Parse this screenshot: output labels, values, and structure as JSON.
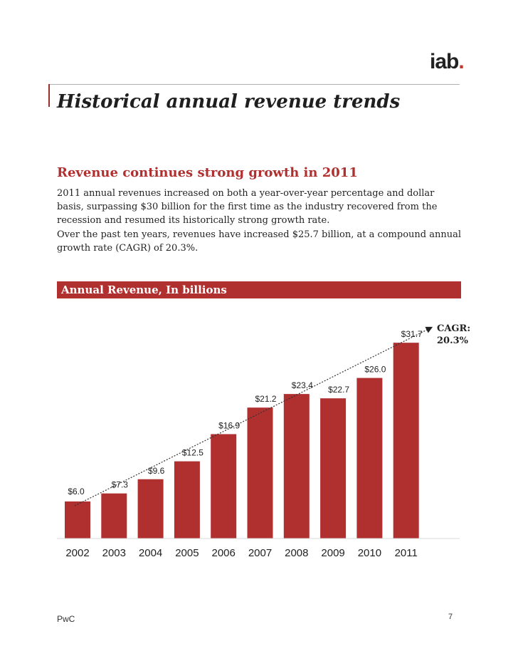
{
  "logo": {
    "text": "iab",
    "dot": "."
  },
  "page_title": "Historical annual revenue trends",
  "section": {
    "heading": "Revenue continues strong growth in 2011",
    "paragraph1": "2011 annual revenues increased on both a year-over-year percentage and dollar basis, surpassing $30 billion for the first time as the industry recovered from the recession and resumed its historically strong growth rate.",
    "paragraph2": "Over the past ten years, revenues have increased $25.7 billion, at a compound annual growth rate (CAGR) of 20.3%."
  },
  "chart_header": "Annual Revenue, In billions",
  "chart_data": {
    "type": "bar",
    "title": "Annual Revenue, In billions",
    "categories": [
      "2002",
      "2003",
      "2004",
      "2005",
      "2006",
      "2007",
      "2008",
      "2009",
      "2010",
      "2011"
    ],
    "values": [
      6.0,
      7.3,
      9.6,
      12.5,
      16.9,
      21.2,
      23.4,
      22.7,
      26.0,
      31.7
    ],
    "data_labels": [
      "$6.0",
      "$7.3",
      "$9.6",
      "$12.5",
      "$16.9",
      "$21.2",
      "$23.4",
      "$22.7",
      "$26.0",
      "$31.7"
    ],
    "bar_color": "#b03030",
    "ylim": [
      0,
      33
    ],
    "trend_annotation": {
      "line1": "CAGR:",
      "line2": "20.3%"
    },
    "grid": false
  },
  "footer": {
    "left": "PwC",
    "page_number": "7"
  }
}
